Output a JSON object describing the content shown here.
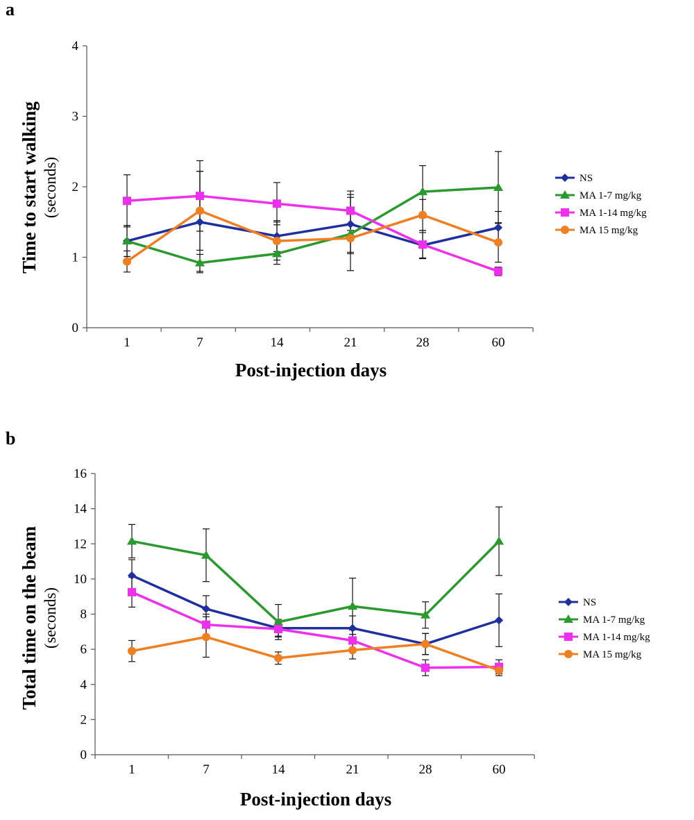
{
  "chart_data": [
    {
      "panel_label": "a",
      "type": "line",
      "categories": [
        "1",
        "7",
        "14",
        "21",
        "28",
        "60"
      ],
      "xlabel": "Post-injection days",
      "ylabel": "Time to start walking",
      "ylabel_sub": "(seconds)",
      "ylim": [
        0,
        4
      ],
      "yticks": [
        "0",
        "1",
        "2",
        "3",
        "4"
      ],
      "grid": false,
      "legend_placement": "right",
      "series": [
        {
          "name": "NS",
          "color": "#1f2f9e",
          "marker": "diamond",
          "values": [
            1.23,
            1.5,
            1.3,
            1.47,
            1.17,
            1.42
          ],
          "errors": [
            0.22,
            0.72,
            0.22,
            0.42,
            0.18,
            0.23
          ]
        },
        {
          "name": "MA 1-7 mg/kg",
          "color": "#2a9a2e",
          "marker": "triangle",
          "values": [
            1.23,
            0.92,
            1.05,
            1.33,
            1.93,
            1.99
          ],
          "errors": [
            0.22,
            0.12,
            0.15,
            0.52,
            0.37,
            0.51
          ]
        },
        {
          "name": "MA 1-14 mg/kg",
          "color": "#ee2fee",
          "marker": "square",
          "values": [
            1.8,
            1.87,
            1.76,
            1.66,
            1.18,
            0.8
          ],
          "errors": [
            0.37,
            0.5,
            0.3,
            0.28,
            0.2,
            0.06
          ]
        },
        {
          "name": "MA 15 mg/kg",
          "color": "#f07f22",
          "marker": "circle",
          "values": [
            0.94,
            1.66,
            1.23,
            1.27,
            1.6,
            1.21
          ],
          "errors": [
            0.15,
            0.56,
            0.27,
            0.2,
            0.22,
            0.28
          ]
        }
      ]
    },
    {
      "panel_label": "b",
      "type": "line",
      "categories": [
        "1",
        "7",
        "14",
        "21",
        "28",
        "60"
      ],
      "xlabel": "Post-injection days",
      "ylabel": "Total time on the beam",
      "ylabel_sub": "(seconds)",
      "ylim": [
        0,
        16
      ],
      "yticks": [
        "0",
        "2",
        "4",
        "6",
        "8",
        "10",
        "12",
        "14",
        "16"
      ],
      "grid": false,
      "legend_placement": "right",
      "series": [
        {
          "name": "NS",
          "color": "#1f2f9e",
          "marker": "diamond",
          "values": [
            10.2,
            8.3,
            7.2,
            7.2,
            6.3,
            7.65
          ],
          "errors": [
            0.9,
            0.75,
            0.5,
            0.7,
            0.6,
            1.5
          ]
        },
        {
          "name": "MA 1-7 mg/kg",
          "color": "#2a9a2e",
          "marker": "triangle",
          "values": [
            12.15,
            11.35,
            7.55,
            8.45,
            7.95,
            12.15
          ],
          "errors": [
            0.95,
            1.5,
            1.0,
            1.6,
            0.75,
            1.95
          ]
        },
        {
          "name": "MA 1-14 mg/kg",
          "color": "#ee2fee",
          "marker": "square",
          "values": [
            9.25,
            7.4,
            7.15,
            6.5,
            4.95,
            5.0
          ],
          "errors": [
            0.85,
            0.6,
            0.4,
            0.6,
            0.45,
            0.4
          ]
        },
        {
          "name": "MA 15 mg/kg",
          "color": "#f07f22",
          "marker": "circle",
          "values": [
            5.9,
            6.7,
            5.5,
            5.95,
            6.3,
            4.8
          ],
          "errors": [
            0.6,
            1.15,
            0.35,
            0.5,
            0.6,
            0.3
          ]
        }
      ]
    }
  ]
}
